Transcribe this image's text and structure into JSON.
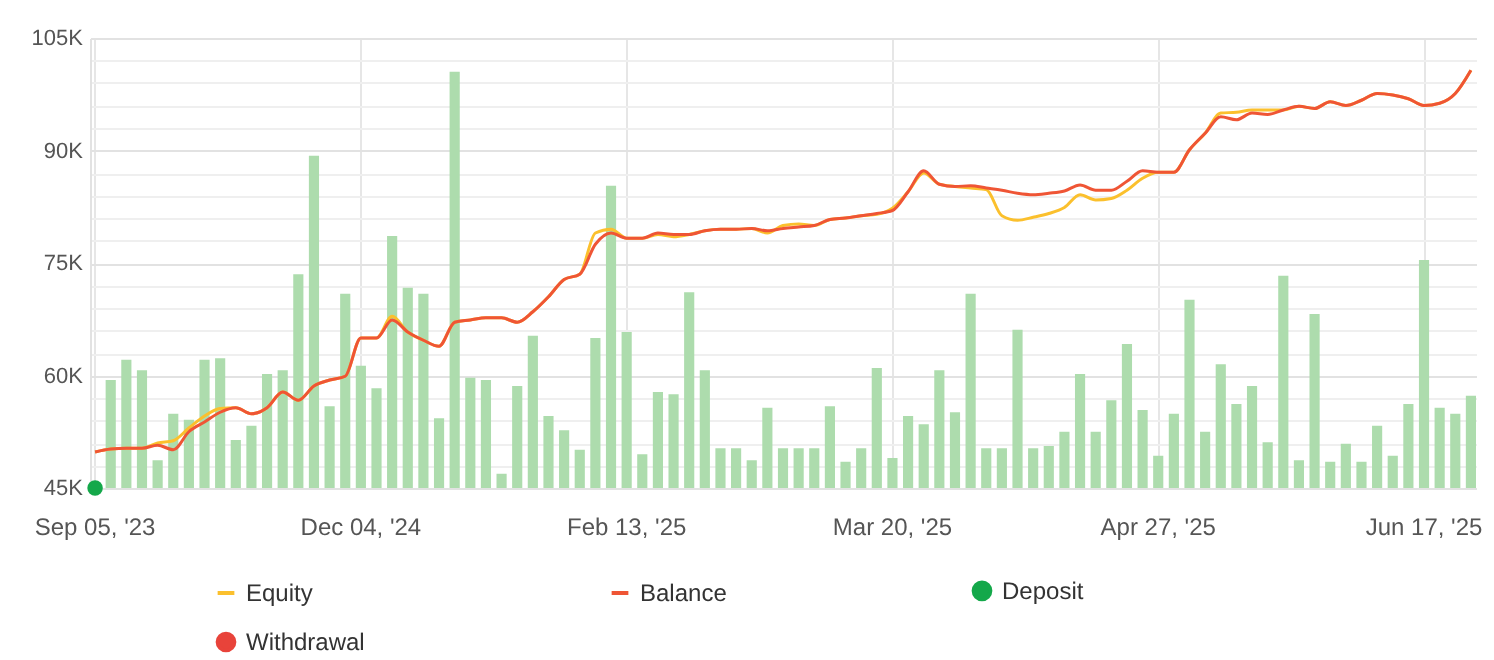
{
  "chart_data": {
    "type": "line",
    "categories": [
      "Sep 05, '23",
      null,
      null,
      null,
      null,
      null,
      null,
      null,
      null,
      null,
      null,
      null,
      null,
      null,
      null,
      null,
      null,
      "Dec 04, '24",
      null,
      null,
      null,
      null,
      null,
      null,
      null,
      null,
      null,
      null,
      null,
      null,
      null,
      null,
      null,
      null,
      "Feb 13, '25",
      null,
      null,
      null,
      null,
      null,
      null,
      null,
      null,
      null,
      null,
      null,
      null,
      null,
      null,
      null,
      null,
      "Mar 20, '25",
      null,
      null,
      null,
      null,
      null,
      null,
      null,
      null,
      null,
      null,
      null,
      null,
      null,
      null,
      null,
      null,
      "Apr 27, '25",
      null,
      null,
      null,
      null,
      null,
      null,
      null,
      null,
      null,
      null,
      null,
      null,
      null,
      null,
      null,
      null,
      "Jun 17, '25",
      null,
      null,
      null
    ],
    "series": [
      {
        "type": "bar",
        "color": "#addcad",
        "values": [
          null,
          59400,
          62100,
          60700,
          48700,
          54900,
          54100,
          62100,
          62300,
          51400,
          53300,
          60200,
          60700,
          73500,
          89300,
          55900,
          70900,
          61300,
          58300,
          78600,
          71700,
          70900,
          54300,
          100500,
          59700,
          59400,
          46900,
          58600,
          65300,
          54600,
          52700,
          50100,
          65000,
          85300,
          65800,
          49500,
          57800,
          57500,
          71100,
          60700,
          50300,
          50300,
          48700,
          55700,
          50300,
          50300,
          50300,
          55900,
          48500,
          50300,
          61000,
          49000,
          54600,
          53500,
          60700,
          55100,
          70900,
          50300,
          50300,
          66100,
          50300,
          50600,
          52500,
          60200,
          52500,
          56700,
          64200,
          55400,
          49300,
          54900,
          70100,
          52500,
          61500,
          56200,
          58600,
          51100,
          73300,
          48700,
          68200,
          48500,
          50900,
          48500,
          53300,
          49300,
          56200,
          75400,
          55700,
          54900,
          57300
        ]
      },
      {
        "name": "Equity",
        "color": "#fbc02d",
        "values": [
          49800,
          50200,
          50300,
          50300,
          51000,
          51300,
          53000,
          54600,
          55600,
          55700,
          54900,
          55700,
          57800,
          56700,
          58600,
          59400,
          59900,
          65000,
          65000,
          67900,
          65800,
          64700,
          63900,
          67100,
          67400,
          67700,
          67700,
          67100,
          68500,
          70500,
          72800,
          73500,
          79000,
          79500,
          78300,
          78300,
          78800,
          78500,
          78800,
          79300,
          79500,
          79500,
          79600,
          79000,
          80000,
          80200,
          80000,
          80800,
          81000,
          81300,
          81500,
          82300,
          84500,
          87000,
          85500,
          85200,
          85000,
          84800,
          81300,
          80700,
          81100,
          81600,
          82400,
          84100,
          83400,
          83600,
          84700,
          86300,
          87100,
          87100,
          90100,
          92300,
          95000,
          95100,
          95400,
          95400,
          95400,
          95900,
          95600,
          96500,
          96000,
          96700,
          97600,
          97400,
          96900,
          96000,
          96300,
          97600,
          100700
        ]
      },
      {
        "name": "Balance",
        "color": "#ef5535",
        "values": [
          49800,
          50200,
          50300,
          50300,
          50700,
          50100,
          52500,
          53800,
          55100,
          55700,
          54900,
          55700,
          57800,
          56700,
          58600,
          59400,
          59900,
          65000,
          65000,
          67400,
          65800,
          64700,
          63900,
          67100,
          67400,
          67700,
          67700,
          67100,
          68500,
          70500,
          72800,
          73500,
          77500,
          79000,
          78300,
          78300,
          79000,
          78800,
          78800,
          79300,
          79500,
          79500,
          79600,
          79300,
          79600,
          79800,
          80000,
          80800,
          81000,
          81300,
          81600,
          82000,
          84500,
          87300,
          85500,
          85200,
          85300,
          85000,
          84700,
          84300,
          84100,
          84300,
          84600,
          85400,
          84700,
          84700,
          85900,
          87300,
          87100,
          87100,
          90100,
          92300,
          94500,
          94100,
          95000,
          94800,
          95400,
          95900,
          95600,
          96500,
          96000,
          96700,
          97600,
          97400,
          96900,
          96000,
          96300,
          97600,
          100700
        ]
      },
      {
        "name": "Deposit",
        "type": "scatter",
        "color": "#14a84a",
        "values": [
          45000,
          null,
          null,
          null,
          null,
          null,
          null,
          null,
          null,
          null,
          null,
          null,
          null,
          null,
          null,
          null,
          null,
          null,
          null,
          null,
          null,
          null,
          null,
          null,
          null,
          null,
          null,
          null,
          null,
          null,
          null,
          null,
          null,
          null,
          null,
          null,
          null,
          null,
          null,
          null,
          null,
          null,
          null,
          null,
          null,
          null,
          null,
          null,
          null,
          null,
          null,
          null,
          null,
          null,
          null,
          null,
          null,
          null,
          null,
          null,
          null,
          null,
          null,
          null,
          null,
          null,
          null,
          null,
          null,
          null,
          null,
          null,
          null,
          null,
          null,
          null,
          null,
          null,
          null,
          null,
          null,
          null,
          null,
          null,
          null,
          null,
          null,
          null,
          null
        ]
      },
      {
        "name": "Withdrawal",
        "type": "scatter",
        "color": "#e8433a",
        "values": [
          null,
          null,
          null,
          null,
          null,
          null,
          null,
          null,
          null,
          null,
          null,
          null,
          null,
          null,
          null,
          null,
          null,
          null,
          null,
          null,
          null,
          null,
          null,
          null,
          null,
          null,
          null,
          null,
          null,
          null,
          null,
          null,
          null,
          null,
          null,
          null,
          null,
          null,
          null,
          null,
          null,
          null,
          null,
          null,
          null,
          null,
          null,
          null,
          null,
          null,
          null,
          null,
          null,
          null,
          null,
          null,
          null,
          null,
          null,
          null,
          null,
          null,
          null,
          null,
          null,
          null,
          null,
          null,
          null,
          null,
          null,
          null,
          null,
          null,
          null,
          null,
          null,
          null,
          null,
          null,
          null,
          null,
          null,
          null,
          null,
          null,
          null,
          null,
          null
        ]
      }
    ],
    "ylim": [
      45000,
      105000
    ],
    "yticks": [
      {
        "value": 45000,
        "label": "45K"
      },
      {
        "value": 48000,
        "label": null
      },
      {
        "value": 51000,
        "label": null
      },
      {
        "value": 54000,
        "label": null
      },
      {
        "value": 57000,
        "label": null
      },
      {
        "value": 60000,
        "label": "60K"
      },
      {
        "value": 63000,
        "label": null
      },
      {
        "value": 66000,
        "label": null
      },
      {
        "value": 69000,
        "label": null
      },
      {
        "value": 72000,
        "label": null
      },
      {
        "value": 75000,
        "label": "75K"
      },
      {
        "value": 78000,
        "label": null
      },
      {
        "value": 81000,
        "label": null
      },
      {
        "value": 84000,
        "label": null
      },
      {
        "value": 87000,
        "label": null
      },
      {
        "value": 90000,
        "label": "90K"
      },
      {
        "value": 93000,
        "label": null
      },
      {
        "value": 96000,
        "label": null
      },
      {
        "value": 99000,
        "label": null
      },
      {
        "value": 102000,
        "label": null
      },
      {
        "value": 105000,
        "label": "105K"
      }
    ],
    "grid": true,
    "legend": "bottom"
  }
}
